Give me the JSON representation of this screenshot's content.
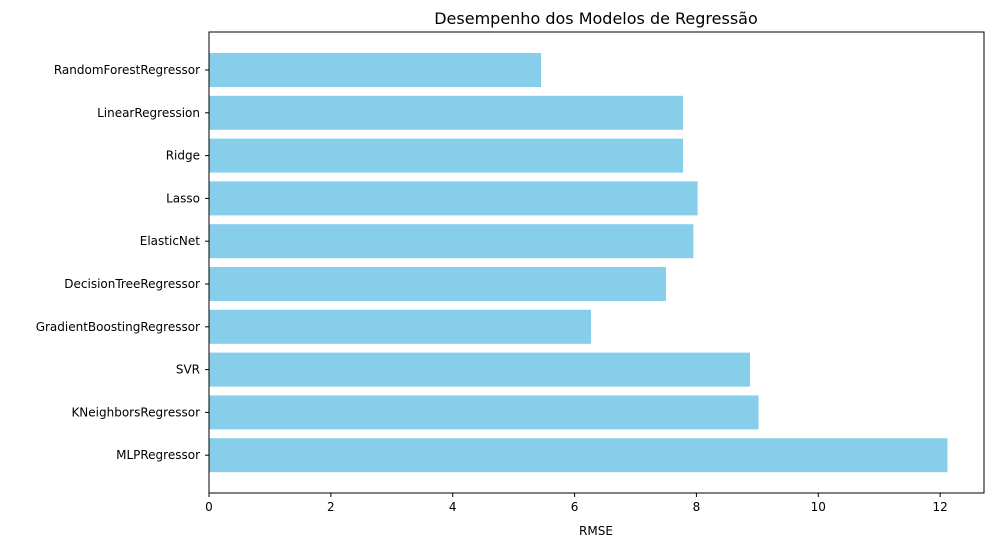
{
  "chart_data": {
    "type": "bar",
    "orientation": "horizontal",
    "title": "Desempenho dos Modelos de Regressão",
    "xlabel": "RMSE",
    "ylabel": "",
    "categories": [
      "RandomForestRegressor",
      "LinearRegression",
      "Ridge",
      "Lasso",
      "ElasticNet",
      "DecisionTreeRegressor",
      "GradientBoostingRegressor",
      "SVR",
      "KNeighborsRegressor",
      "MLPRegressor"
    ],
    "values": [
      5.45,
      7.78,
      7.78,
      8.02,
      7.95,
      7.5,
      6.27,
      8.88,
      9.02,
      12.12
    ],
    "xlim": [
      0,
      12.72
    ],
    "xticks": [
      0,
      2,
      4,
      6,
      8,
      10,
      12
    ],
    "bar_color": "#87ceeb",
    "grid": false,
    "legend": "none"
  }
}
